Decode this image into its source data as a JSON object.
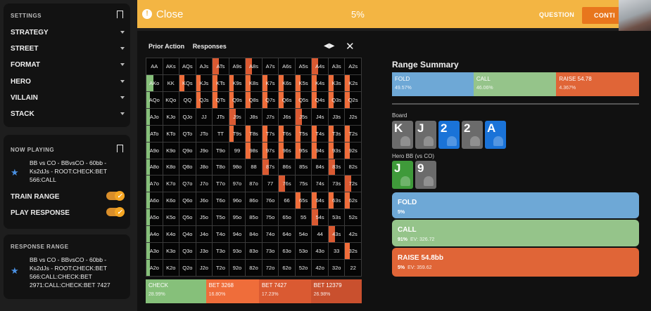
{
  "colors": {
    "fold": "#6ea8d6",
    "call": "#95c48a",
    "raise": "#e06537",
    "bet_small": "#ef6d3a",
    "bet_mid": "#da5a32",
    "bet_big": "#c9502e",
    "check": "#86c07a",
    "topbar": "#f3b543",
    "accent": "#e8761d"
  },
  "sidebar": {
    "settings": {
      "title": "SETTINGS",
      "items": [
        {
          "label": "STRATEGY"
        },
        {
          "label": "STREET"
        },
        {
          "label": "FORMAT"
        },
        {
          "label": "HERO"
        },
        {
          "label": "VILLAIN"
        },
        {
          "label": "STACK"
        }
      ]
    },
    "now_playing": {
      "title": "NOW PLAYING",
      "text": "BB vs CO - BBvsCO - 60bb - Ks2dJs - ROOT:CHECK:BET 566:CALL",
      "train_range": "TRAIN RANGE",
      "play_response": "PLAY RESPONSE",
      "train_range_on": true,
      "play_response_on": true
    },
    "response_range": {
      "title": "RESPONSE RANGE",
      "text": "BB vs CO - BBvsCO - 60bb - Ks2dJs - ROOT:CHECK:BET 566:CALL:CHECK:BET 2971:CALL:CHECK:BET 7427"
    }
  },
  "topbar": {
    "close": "Close",
    "percent": "5%",
    "question": "QUESTION",
    "continue": "CONTI"
  },
  "grid": {
    "tabs": [
      "Prior Action",
      "Responses"
    ],
    "hands": [
      [
        "AA",
        "AKs",
        "AQs",
        "AJs",
        "ATs",
        "A9s",
        "A8s",
        "A7s",
        "A6s",
        "A5s",
        "A4s",
        "A3s",
        "A2s"
      ],
      [
        "AKo",
        "KK",
        "KQs",
        "KJs",
        "KTs",
        "K9s",
        "K8s",
        "K7s",
        "K6s",
        "K5s",
        "K4s",
        "K3s",
        "K2s"
      ],
      [
        "AQo",
        "KQo",
        "QQ",
        "QJs",
        "QTs",
        "Q9s",
        "Q8s",
        "Q7s",
        "Q6s",
        "Q5s",
        "Q4s",
        "Q3s",
        "Q2s"
      ],
      [
        "AJo",
        "KJo",
        "QJo",
        "JJ",
        "JTs",
        "J9s",
        "J8s",
        "J7s",
        "J6s",
        "J5s",
        "J4s",
        "J3s",
        "J2s"
      ],
      [
        "ATo",
        "KTo",
        "QTo",
        "JTo",
        "TT",
        "T9s",
        "T8s",
        "T7s",
        "T6s",
        "T5s",
        "T4s",
        "T3s",
        "T2s"
      ],
      [
        "A9o",
        "K9o",
        "Q9o",
        "J9o",
        "T9o",
        "99",
        "98s",
        "97s",
        "96s",
        "95s",
        "94s",
        "93s",
        "92s"
      ],
      [
        "A8o",
        "K8o",
        "Q8o",
        "J8o",
        "T8o",
        "98o",
        "88",
        "87s",
        "86s",
        "85s",
        "84s",
        "83s",
        "82s"
      ],
      [
        "A7o",
        "K7o",
        "Q7o",
        "J7o",
        "T7o",
        "97o",
        "87o",
        "77",
        "76s",
        "75s",
        "74s",
        "73s",
        "72s"
      ],
      [
        "A6o",
        "K6o",
        "Q6o",
        "J6o",
        "T6o",
        "96o",
        "86o",
        "76o",
        "66",
        "65s",
        "64s",
        "63s",
        "62s"
      ],
      [
        "A5o",
        "K5o",
        "Q5o",
        "J5o",
        "T5o",
        "95o",
        "85o",
        "75o",
        "65o",
        "55",
        "54s",
        "53s",
        "52s"
      ],
      [
        "A4o",
        "K4o",
        "Q4o",
        "J4o",
        "T4o",
        "94o",
        "84o",
        "74o",
        "64o",
        "54o",
        "44",
        "43s",
        "42s"
      ],
      [
        "A3o",
        "K3o",
        "Q3o",
        "J3o",
        "T3o",
        "93o",
        "83o",
        "73o",
        "63o",
        "53o",
        "43o",
        "33",
        "32s"
      ],
      [
        "A2o",
        "K2o",
        "Q2o",
        "J2o",
        "T2o",
        "92o",
        "82o",
        "72o",
        "62o",
        "52o",
        "42o",
        "32o",
        "22"
      ]
    ],
    "legend": [
      {
        "label": "CHECK",
        "pct": "28.99%",
        "share": 28.99,
        "color": "#86c07a"
      },
      {
        "label": "BET 3268",
        "pct": "16.80%",
        "share": 25.5,
        "color": "#ef6d3a"
      },
      {
        "label": "BET 7427",
        "pct": "17.23%",
        "share": 25,
        "color": "#da5a32"
      },
      {
        "label": "BET 12379",
        "pct": "26.98%",
        "share": 24.5,
        "color": "#c9502e"
      }
    ]
  },
  "summary": {
    "title": "Range Summary",
    "bars": [
      {
        "label": "FOLD",
        "pct": "49.57%",
        "share": 33,
        "color": "#6ea8d6"
      },
      {
        "label": "CALL",
        "pct": "46.06%",
        "share": 33.5,
        "color": "#95c48a"
      },
      {
        "label": "RAISE 54.78",
        "pct": "4.367%",
        "share": 33.5,
        "color": "#e06537"
      }
    ],
    "board_label": "Board",
    "board": [
      {
        "rank": "K",
        "suit": "spades"
      },
      {
        "rank": "J",
        "suit": "spades"
      },
      {
        "rank": "2",
        "suit": "diamonds"
      },
      {
        "rank": "2",
        "suit": "spades"
      },
      {
        "rank": "A",
        "suit": "diamonds"
      }
    ],
    "hero_label": "Hero BB (vs CO)",
    "hero": [
      {
        "rank": "J",
        "suit": "clubs"
      },
      {
        "rank": "9",
        "suit": "spades"
      }
    ],
    "actions": [
      {
        "label": "FOLD",
        "freq": "5%",
        "ev": "",
        "color": "#6ea8d6"
      },
      {
        "label": "CALL",
        "freq": "91%",
        "ev": "EV: 326.72",
        "color": "#95c48a"
      },
      {
        "label": "RAISE 54.8bb",
        "freq": "5%",
        "ev": "EV: 359.62",
        "color": "#e06537"
      }
    ]
  }
}
